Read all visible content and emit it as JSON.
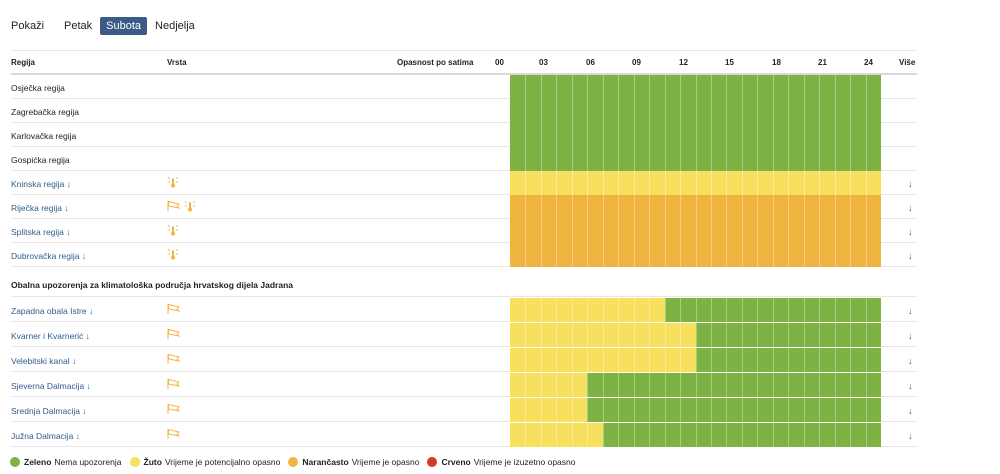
{
  "daybar": {
    "label": "Pokaži",
    "days": [
      {
        "label": "Petak",
        "active": false
      },
      {
        "label": "Subota",
        "active": true
      },
      {
        "label": "Nedjelja",
        "active": false
      }
    ]
  },
  "header": {
    "regija": "Regija",
    "vrsta": "Vrsta",
    "opasnost": "Opasnost po satima",
    "hours": [
      "00",
      "03",
      "06",
      "09",
      "12",
      "15",
      "18",
      "21",
      "24"
    ],
    "vise": "Više"
  },
  "colors": {
    "green": "#7cb342",
    "yellow": "#f6e05e",
    "orange": "#f2b441",
    "red": "#d9342b"
  },
  "rows": [
    {
      "name": "Osječka regija",
      "link": false,
      "icons": [],
      "segments": [
        {
          "from": 0,
          "to": 24,
          "color": "green"
        }
      ]
    },
    {
      "name": "Zagrebačka regija",
      "link": false,
      "icons": [],
      "segments": [
        {
          "from": 0,
          "to": 24,
          "color": "green"
        }
      ]
    },
    {
      "name": "Karlovačka regija",
      "link": false,
      "icons": [],
      "segments": [
        {
          "from": 0,
          "to": 24,
          "color": "green"
        }
      ]
    },
    {
      "name": "Gospićka regija",
      "link": false,
      "icons": [],
      "segments": [
        {
          "from": 0,
          "to": 24,
          "color": "green"
        }
      ]
    },
    {
      "name": "Kninska regija ↓",
      "link": true,
      "icons": [
        "heat-icon"
      ],
      "segments": [
        {
          "from": 0,
          "to": 24,
          "color": "yellow"
        }
      ]
    },
    {
      "name": "Riječka regija ↓",
      "link": true,
      "icons": [
        "wind-icon",
        "heat-icon"
      ],
      "segments": [
        {
          "from": 0,
          "to": 24,
          "color": "orange"
        }
      ]
    },
    {
      "name": "Splitska regija ↓",
      "link": true,
      "icons": [
        "heat-icon"
      ],
      "segments": [
        {
          "from": 0,
          "to": 24,
          "color": "orange"
        }
      ]
    },
    {
      "name": "Dubrovačka regija ↓",
      "link": true,
      "icons": [
        "heat-icon"
      ],
      "segments": [
        {
          "from": 0,
          "to": 24,
          "color": "orange"
        }
      ]
    }
  ],
  "section_title": "Obalna upozorenja za klimatološka područja hrvatskog dijela Jadrana",
  "coastal_rows": [
    {
      "name": "Zapadna obala Istre ↓",
      "link": true,
      "icons": [
        "wind-icon"
      ],
      "segments": [
        {
          "from": 0,
          "to": 10,
          "color": "yellow"
        },
        {
          "from": 10,
          "to": 24,
          "color": "green"
        }
      ]
    },
    {
      "name": "Kvarner i Kvarnerić ↓",
      "link": true,
      "icons": [
        "wind-icon"
      ],
      "segments": [
        {
          "from": 0,
          "to": 12,
          "color": "yellow"
        },
        {
          "from": 12,
          "to": 24,
          "color": "green"
        }
      ]
    },
    {
      "name": "Velebitski kanal ↓",
      "link": true,
      "icons": [
        "wind-icon"
      ],
      "segments": [
        {
          "from": 0,
          "to": 12,
          "color": "yellow"
        },
        {
          "from": 12,
          "to": 24,
          "color": "green"
        }
      ]
    },
    {
      "name": "Sjeverna Dalmacija ↓",
      "link": true,
      "icons": [
        "wind-icon"
      ],
      "segments": [
        {
          "from": 0,
          "to": 5,
          "color": "yellow"
        },
        {
          "from": 5,
          "to": 24,
          "color": "green"
        }
      ]
    },
    {
      "name": "Srednja Dalmacija ↓",
      "link": true,
      "icons": [
        "wind-icon"
      ],
      "segments": [
        {
          "from": 0,
          "to": 5,
          "color": "yellow"
        },
        {
          "from": 5,
          "to": 24,
          "color": "green"
        }
      ]
    },
    {
      "name": "Južna Dalmacija ↓",
      "link": true,
      "icons": [
        "wind-icon"
      ],
      "segments": [
        {
          "from": 0,
          "to": 6,
          "color": "yellow"
        },
        {
          "from": 6,
          "to": 24,
          "color": "green"
        }
      ]
    }
  ],
  "more_glyph": "↓",
  "legend": [
    {
      "color": "green",
      "bold": "Zeleno",
      "text": "Nema upozorenja"
    },
    {
      "color": "yellow",
      "bold": "Žuto",
      "text": "Vrijeme je potencijalno opasno"
    },
    {
      "color": "orange",
      "bold": "Narančasto",
      "text": "Vrijeme je opasno"
    },
    {
      "color": "red",
      "bold": "Crveno",
      "text": "Vrijeme je izuzetno opasno"
    }
  ]
}
